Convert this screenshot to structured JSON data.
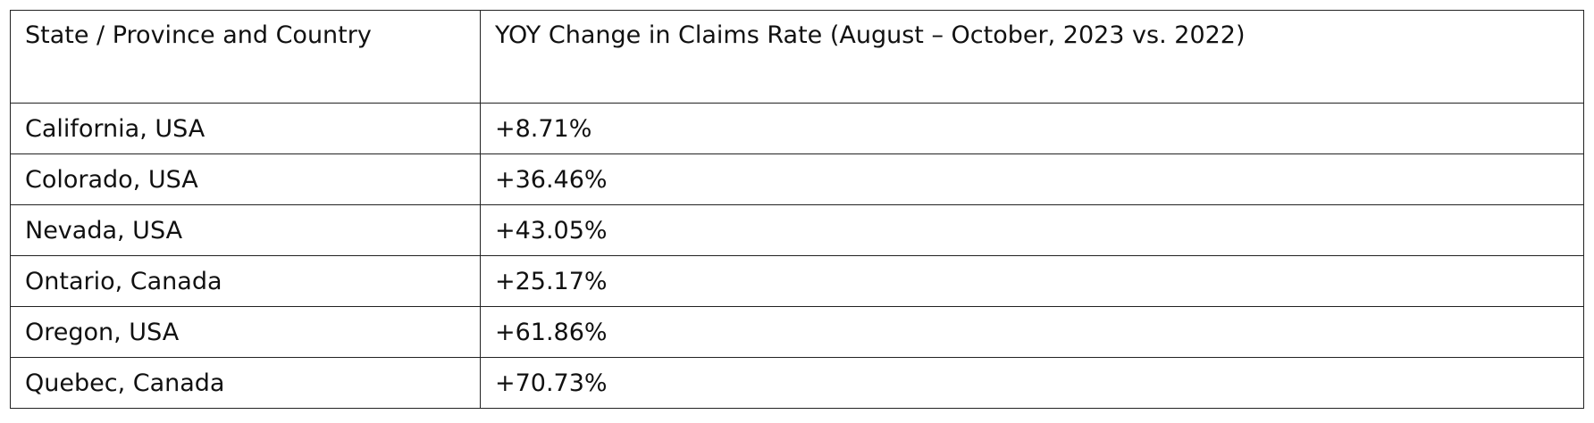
{
  "table": {
    "header": [
      "State / Province and Country",
      "YOY Change in Claims Rate (August – October, 2023 vs. 2022)"
    ],
    "rows": [
      [
        "California, USA",
        "+8.71%"
      ],
      [
        "Colorado, USA",
        "+36.46%"
      ],
      [
        "Nevada, USA",
        "+43.05%"
      ],
      [
        "Ontario, Canada",
        "+25.17%"
      ],
      [
        "Oregon, USA",
        "+61.86%"
      ],
      [
        "Quebec, Canada",
        "+70.73%"
      ]
    ]
  }
}
